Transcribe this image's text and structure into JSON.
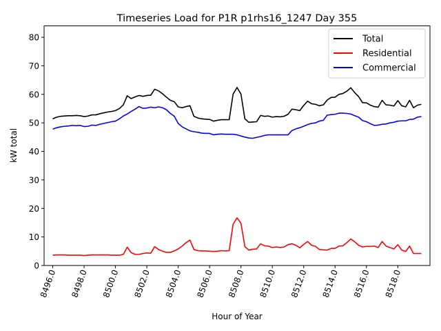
{
  "chart_data": {
    "type": "line",
    "title": "Timeseries Load for P1R p1rhs16_1247  Day 355",
    "xlabel": "Hour of Year",
    "ylabel": "kW total",
    "xlim": [
      8495.45,
      8520.05
    ],
    "ylim": [
      0,
      84
    ],
    "xticks": [
      8496,
      8498,
      8500,
      8502,
      8504,
      8506,
      8508,
      8510,
      8512,
      8514,
      8516,
      8518
    ],
    "xtick_labels": [
      "8496.0",
      "8498.0",
      "8500.0",
      "8502.0",
      "8504.0",
      "8506.0",
      "8508.0",
      "8510.0",
      "8512.0",
      "8514.0",
      "8516.0",
      "8518.0"
    ],
    "yticks": [
      0,
      10,
      20,
      30,
      40,
      50,
      60,
      70,
      80
    ],
    "ytick_labels": [
      "0",
      "10",
      "20",
      "30",
      "40",
      "50",
      "60",
      "70",
      "80"
    ],
    "legend_position": "top-right",
    "x": [
      8496.0,
      8496.25,
      8496.5,
      8496.75,
      8497.0,
      8497.25,
      8497.5,
      8497.75,
      8498.0,
      8498.25,
      8498.5,
      8498.75,
      8499.0,
      8499.25,
      8499.5,
      8499.75,
      8500.0,
      8500.25,
      8500.5,
      8500.75,
      8501.0,
      8501.25,
      8501.5,
      8501.75,
      8502.0,
      8502.25,
      8502.5,
      8502.75,
      8503.0,
      8503.25,
      8503.5,
      8503.75,
      8504.0,
      8504.25,
      8504.5,
      8504.75,
      8505.0,
      8505.25,
      8505.5,
      8505.75,
      8506.0,
      8506.25,
      8506.5,
      8506.75,
      8507.0,
      8507.25,
      8507.5,
      8507.75,
      8508.0,
      8508.25,
      8508.5,
      8508.75,
      8509.0,
      8509.25,
      8509.5,
      8509.75,
      8510.0,
      8510.25,
      8510.5,
      8510.75,
      8511.0,
      8511.25,
      8511.5,
      8511.75,
      8512.0,
      8512.25,
      8512.5,
      8512.75,
      8513.0,
      8513.25,
      8513.5,
      8513.75,
      8514.0,
      8514.25,
      8514.5,
      8514.75,
      8515.0,
      8515.25,
      8515.5,
      8515.75,
      8516.0,
      8516.25,
      8516.5,
      8516.75,
      8517.0,
      8517.25,
      8517.5,
      8517.75,
      8518.0,
      8518.25,
      8518.5,
      8518.75,
      8519.0,
      8519.25,
      8519.5
    ],
    "series": [
      {
        "name": "Total",
        "color": "#000000",
        "values": [
          51.4,
          52.0,
          52.3,
          52.4,
          52.5,
          52.5,
          52.6,
          52.5,
          52.2,
          52.4,
          52.8,
          52.8,
          53.2,
          53.5,
          53.8,
          54.0,
          54.3,
          55.0,
          56.3,
          59.5,
          58.5,
          59.1,
          59.6,
          59.3,
          59.6,
          59.7,
          61.8,
          61.2,
          60.2,
          59.0,
          57.9,
          57.4,
          55.6,
          55.3,
          55.7,
          56.0,
          52.3,
          51.7,
          51.4,
          51.3,
          51.2,
          50.6,
          50.9,
          51.1,
          51.1,
          51.1,
          60.1,
          62.4,
          60.1,
          51.4,
          50.2,
          50.3,
          50.4,
          52.6,
          52.3,
          52.4,
          52.0,
          52.2,
          52.1,
          52.3,
          53.0,
          54.8,
          54.6,
          54.3,
          56.1,
          57.6,
          56.7,
          56.5,
          56.0,
          56.3,
          58.0,
          58.9,
          59.0,
          60.0,
          60.3,
          61.1,
          62.3,
          60.6,
          59.2,
          57.1,
          57.0,
          56.2,
          55.7,
          55.5,
          57.9,
          56.3,
          56.2,
          55.9,
          57.8,
          56.0,
          55.6,
          57.9,
          55.3,
          56.2,
          56.5
        ]
      },
      {
        "name": "Residential",
        "color": "#ff0000",
        "values": [
          3.6,
          3.7,
          3.7,
          3.7,
          3.6,
          3.6,
          3.6,
          3.6,
          3.5,
          3.6,
          3.7,
          3.7,
          3.7,
          3.7,
          3.7,
          3.6,
          3.6,
          3.6,
          3.9,
          6.4,
          4.5,
          3.9,
          3.9,
          4.2,
          4.4,
          4.3,
          6.6,
          5.6,
          5.0,
          4.6,
          4.6,
          5.1,
          5.8,
          6.8,
          8.0,
          8.9,
          5.6,
          5.2,
          5.1,
          5.1,
          5.0,
          4.9,
          5.0,
          5.2,
          5.1,
          5.2,
          14.5,
          16.7,
          14.8,
          6.6,
          5.4,
          5.7,
          5.8,
          7.6,
          6.9,
          6.8,
          6.3,
          6.5,
          6.3,
          6.5,
          7.3,
          7.6,
          7.1,
          6.2,
          7.4,
          8.4,
          7.1,
          6.7,
          5.6,
          5.5,
          5.4,
          6.0,
          6.0,
          6.8,
          6.9,
          8.0,
          9.3,
          8.3,
          7.1,
          6.5,
          6.7,
          6.7,
          6.8,
          6.3,
          8.4,
          6.8,
          6.3,
          5.8,
          7.3,
          5.4,
          4.9,
          6.8,
          4.2,
          4.2,
          4.2
        ]
      },
      {
        "name": "Commercial",
        "color": "#0000ff",
        "values": [
          47.8,
          48.3,
          48.6,
          48.8,
          48.9,
          49.1,
          49.0,
          49.1,
          48.7,
          48.8,
          49.2,
          49.1,
          49.5,
          49.8,
          50.1,
          50.4,
          50.6,
          51.4,
          52.4,
          53.1,
          54.0,
          54.8,
          55.7,
          55.1,
          55.2,
          55.5,
          55.3,
          55.6,
          55.3,
          54.6,
          53.3,
          52.3,
          49.8,
          48.6,
          47.9,
          47.2,
          46.9,
          46.7,
          46.4,
          46.3,
          46.3,
          45.8,
          46.0,
          46.1,
          46.0,
          46.0,
          46.0,
          45.8,
          45.4,
          45.0,
          44.7,
          44.6,
          44.9,
          45.2,
          45.6,
          45.8,
          45.8,
          45.8,
          45.8,
          45.8,
          45.8,
          47.3,
          47.9,
          48.3,
          48.8,
          49.4,
          49.8,
          50.0,
          50.6,
          50.9,
          52.7,
          52.9,
          53.0,
          53.4,
          53.4,
          53.3,
          53.1,
          52.5,
          52.0,
          50.8,
          50.4,
          49.7,
          49.1,
          49.2,
          49.5,
          49.6,
          50.0,
          50.2,
          50.6,
          50.7,
          50.7,
          51.2,
          51.3,
          52.0,
          52.2
        ]
      }
    ]
  }
}
